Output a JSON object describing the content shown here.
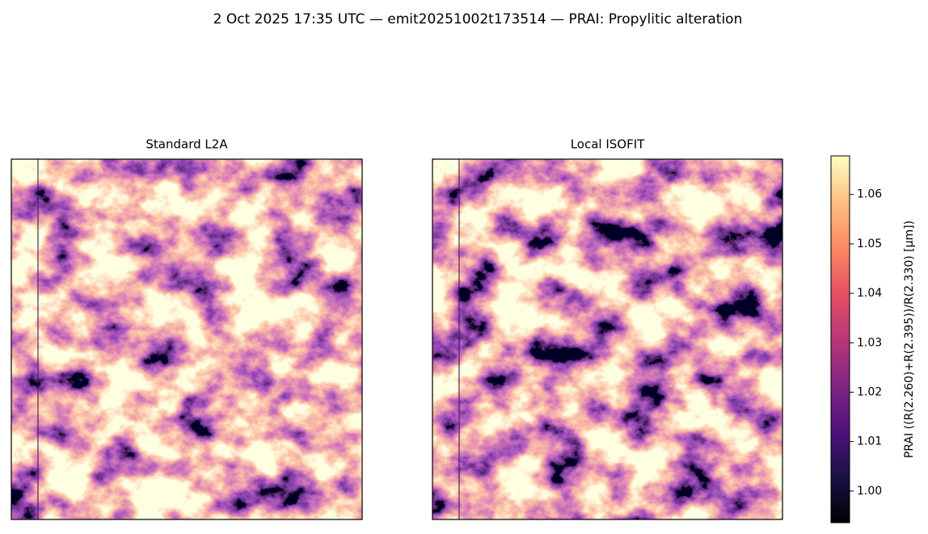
{
  "chart_data": {
    "type": "image",
    "title": "2 Oct 2025 17:35 UTC — emit20251002t173514 — PRAI: Propylitic alteration",
    "panels": [
      {
        "title": "Standard L2A"
      },
      {
        "title": "Local ISOFIT"
      }
    ],
    "colorbar": {
      "label": "PRAI  ((R(2.260)+R(2.395))/R(2.330)  [µm])",
      "colormap": "magma",
      "lim": [
        0.9936,
        1.0678
      ],
      "ticks": [
        {
          "value": 1.0,
          "label": "1.00"
        },
        1.01,
        1.02,
        1.03,
        1.04,
        1.05,
        1.06
      ]
    }
  }
}
